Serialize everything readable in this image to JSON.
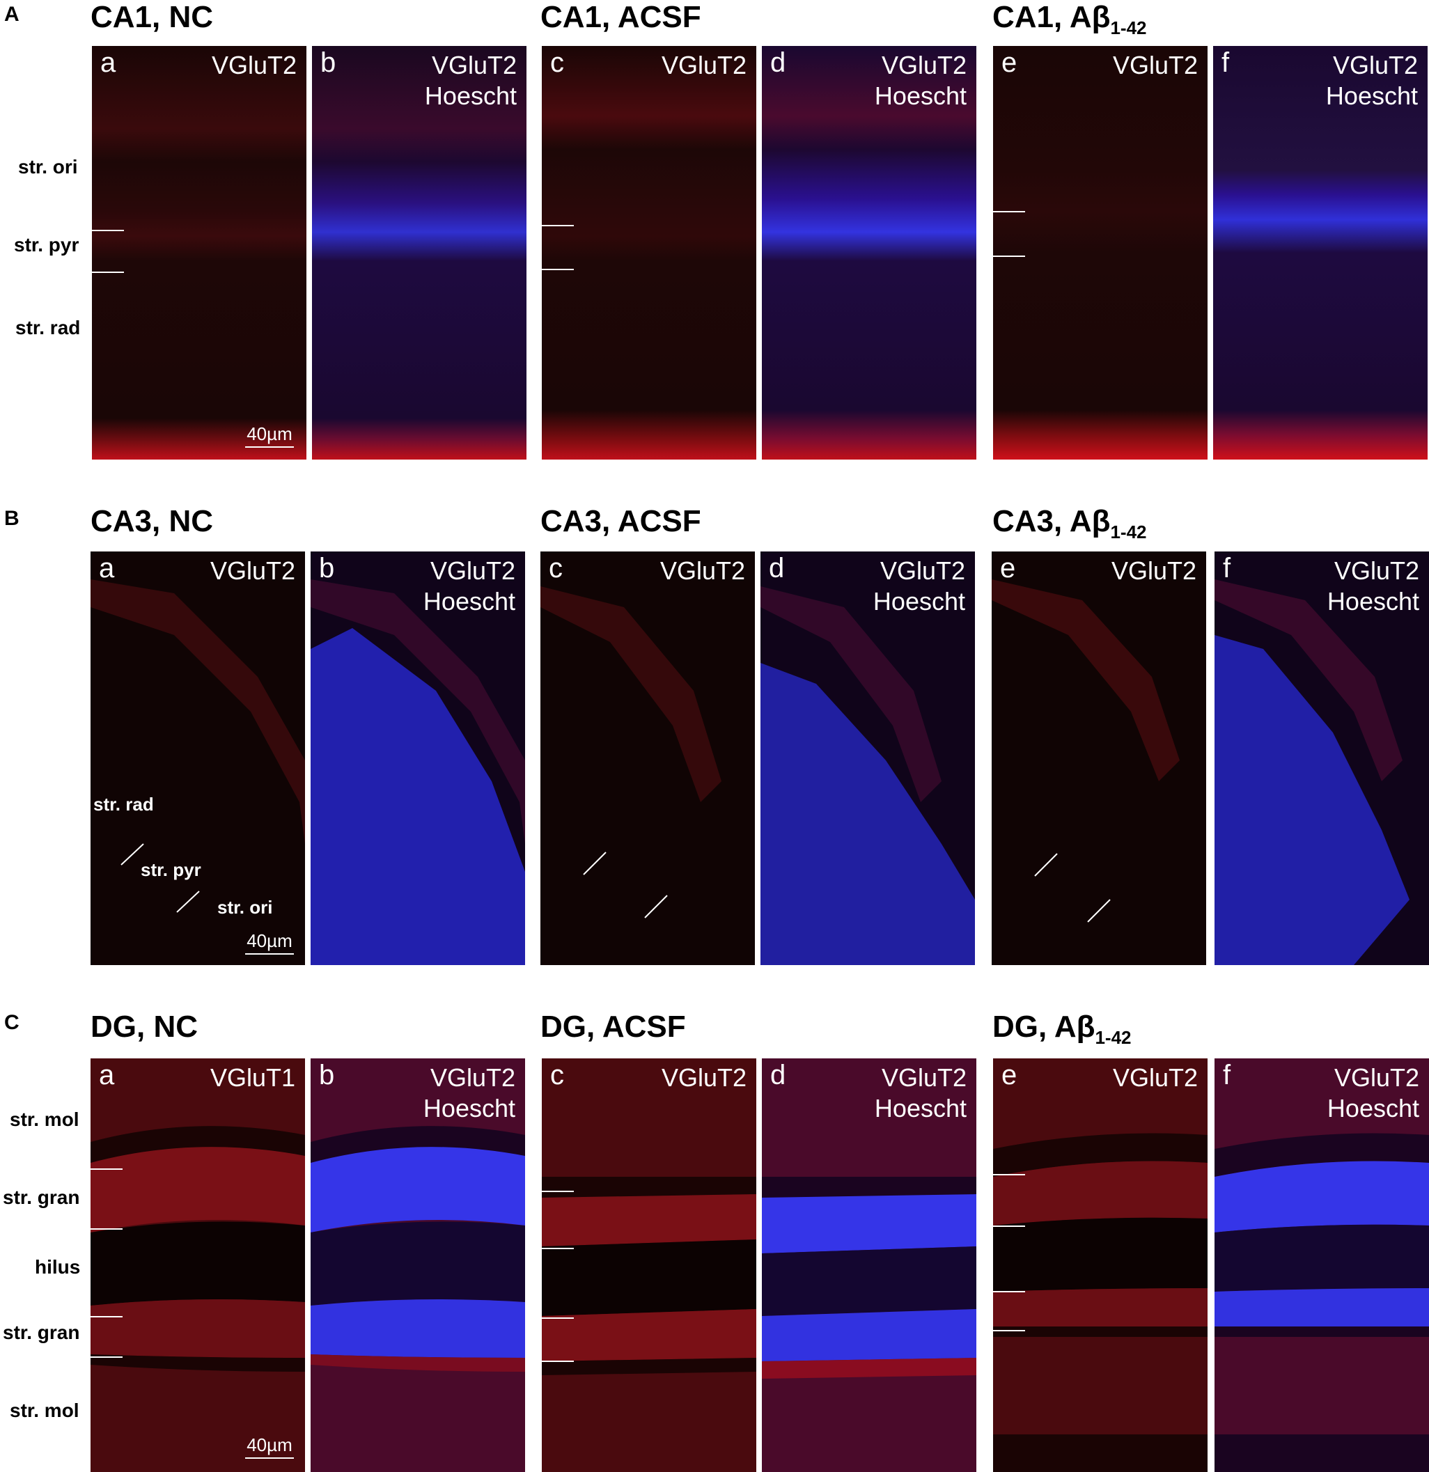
{
  "sections": [
    {
      "id": "A",
      "letter": "A",
      "groups": [
        {
          "title": "CA1, NC",
          "sub": ""
        },
        {
          "title": "CA1, ACSF",
          "sub": ""
        },
        {
          "title": "CA1, Aβ",
          "sub": "1-42"
        }
      ],
      "panels": [
        {
          "label": "a",
          "channels": [
            "VGluT2"
          ]
        },
        {
          "label": "b",
          "channels": [
            "VGluT2",
            "Hoescht"
          ]
        },
        {
          "label": "c",
          "channels": [
            "VGluT2"
          ]
        },
        {
          "label": "d",
          "channels": [
            "VGluT2",
            "Hoescht"
          ]
        },
        {
          "label": "e",
          "channels": [
            "VGluT2"
          ]
        },
        {
          "label": "f",
          "channels": [
            "VGluT2",
            "Hoescht"
          ]
        }
      ],
      "zones": [
        "str. ori",
        "str. pyr",
        "str. rad"
      ],
      "scale": "40µm"
    },
    {
      "id": "B",
      "letter": "B",
      "groups": [
        {
          "title": "CA3, NC",
          "sub": ""
        },
        {
          "title": "CA3, ACSF",
          "sub": ""
        },
        {
          "title": "CA3, Aβ",
          "sub": "1-42"
        }
      ],
      "panels": [
        {
          "label": "a",
          "channels": [
            "VGluT2"
          ]
        },
        {
          "label": "b",
          "channels": [
            "VGluT2",
            "Hoescht"
          ]
        },
        {
          "label": "c",
          "channels": [
            "VGluT2"
          ]
        },
        {
          "label": "d",
          "channels": [
            "VGluT2",
            "Hoescht"
          ]
        },
        {
          "label": "e",
          "channels": [
            "VGluT2"
          ]
        },
        {
          "label": "f",
          "channels": [
            "VGluT2",
            "Hoescht"
          ]
        }
      ],
      "zones": [
        "str. rad",
        "str. pyr",
        "str. ori"
      ],
      "scale": "40µm"
    },
    {
      "id": "C",
      "letter": "C",
      "groups": [
        {
          "title": "DG, NC",
          "sub": ""
        },
        {
          "title": "DG, ACSF",
          "sub": ""
        },
        {
          "title": "DG, Aβ",
          "sub": "1-42"
        }
      ],
      "panels": [
        {
          "label": "a",
          "channels": [
            "VGluT1"
          ]
        },
        {
          "label": "b",
          "channels": [
            "VGluT2",
            "Hoescht"
          ]
        },
        {
          "label": "c",
          "channels": [
            "VGluT2"
          ]
        },
        {
          "label": "d",
          "channels": [
            "VGluT2",
            "Hoescht"
          ]
        },
        {
          "label": "e",
          "channels": [
            "VGluT2"
          ]
        },
        {
          "label": "f",
          "channels": [
            "VGluT2",
            "Hoescht"
          ]
        }
      ],
      "zones": [
        "str. mol",
        "str. gran",
        "hilus",
        "str. gran",
        "str. mol"
      ],
      "scale": "40µm"
    }
  ],
  "colors": {
    "vglut_red": "#e0101a",
    "hoechst_blue": "#2a2aff",
    "background_dark": "#150607"
  }
}
